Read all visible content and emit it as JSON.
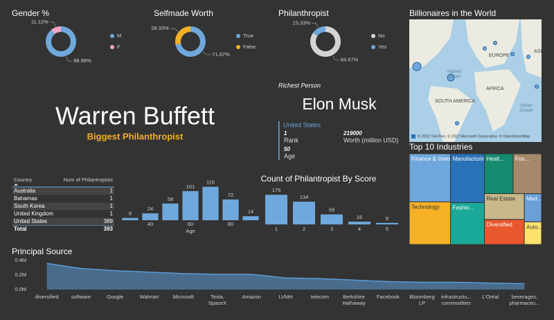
{
  "chart_data": [
    {
      "type": "donut",
      "title": "Gender %",
      "categories": [
        "M",
        "F"
      ],
      "values": [
        88.88,
        11.12
      ],
      "value_labels": [
        "88.88%",
        "11.12%"
      ],
      "colors": [
        "#6fa8dc",
        "#f4a6c8"
      ]
    },
    {
      "type": "donut",
      "title": "Selfmade Worth",
      "categories": [
        "True",
        "False"
      ],
      "values": [
        71.67,
        28.33
      ],
      "value_labels": [
        "71.67%",
        "28.33%"
      ],
      "colors": [
        "#6fa8dc",
        "#f5b026"
      ]
    },
    {
      "type": "donut",
      "title": "Philanthropist",
      "categories": [
        "No",
        "Yes"
      ],
      "values": [
        84.67,
        15.33
      ],
      "value_labels": [
        "84.67%",
        "15.33%"
      ],
      "colors": [
        "#d4d4d4",
        "#6fa8dc"
      ]
    },
    {
      "type": "bar",
      "x": [
        30,
        40,
        50,
        60,
        70,
        80,
        90
      ],
      "values": [
        8,
        24,
        58,
        101,
        116,
        72,
        14
      ],
      "xticks": [
        40,
        60,
        80
      ],
      "xlim": [
        25,
        95
      ],
      "ylim": [
        0,
        120
      ],
      "xlabel": "Age",
      "color": "#6fa8dc"
    },
    {
      "type": "bar",
      "title": "Count of Philantropist By Score",
      "categories": [
        "1",
        "2",
        "3",
        "4",
        "5"
      ],
      "values": [
        175,
        134,
        59,
        16,
        9
      ],
      "ylim": [
        0,
        180
      ],
      "color": "#6fa8dc"
    },
    {
      "type": "area",
      "title": "Principal Source",
      "categories": [
        "diversified",
        "software",
        "Google",
        "Walmart",
        "Microsoft",
        "Tesla, SpaceX",
        "Amazon",
        "LVMH",
        "telecom",
        "Berkshire Hathaway",
        "Facebook",
        "Bloomberg LP",
        "infrastructu... commodities",
        "L'Oréal",
        "beverages, pharmaceu..."
      ],
      "values": [
        360000,
        290000,
        260000,
        240000,
        220000,
        210000,
        210000,
        160000,
        150000,
        130000,
        110000,
        100000,
        100000,
        90000,
        80000
      ],
      "ylim": [
        0,
        420000
      ],
      "yticks": [
        {
          "value": 0,
          "label": "0.0M"
        },
        {
          "value": 200000,
          "label": "0.2M"
        },
        {
          "value": 400000,
          "label": "0.4M"
        }
      ],
      "color": "#5b9bd5"
    },
    {
      "type": "treemap",
      "title": "Top 10 Industries",
      "categories": [
        "Finance & Investments",
        "Technology",
        "Manufacturing",
        "Fashio...",
        "Healt...",
        "Foo...",
        "Real Estate",
        "Diversified",
        "Med...",
        "Auto..."
      ],
      "values": [
        372,
        330,
        310,
        266,
        215,
        212,
        193,
        187,
        91,
        73
      ],
      "colors": [
        "#6fa8dc",
        "#f5b026",
        "#2a72b8",
        "#1aa898",
        "#148a6e",
        "#a6896a",
        "#c8b88a",
        "#e8572e",
        "#6a9fd8",
        "#ffe26b"
      ]
    }
  ],
  "cards": {
    "philanthropist": {
      "name": "Warren Buffett",
      "label": "Biggest Philanthropist"
    },
    "richest": {
      "title": "Richest Person",
      "name": "Elon Musk",
      "country": "United States",
      "rank": 1,
      "rank_label": "Rank",
      "worth": 219000,
      "worth_label": "Worth (million USD)",
      "age": 50,
      "age_label": "Age"
    }
  },
  "table": {
    "columns": [
      "Country",
      "Num of Philantropists"
    ],
    "rows": [
      [
        "Australia",
        1
      ],
      [
        "Bahamas",
        1
      ],
      [
        "South Korea",
        1
      ],
      [
        "United Kingdom",
        1
      ],
      [
        "United States",
        389
      ]
    ],
    "total": [
      "Total",
      393
    ]
  },
  "map": {
    "title": "Billionaires in the World",
    "labels": [
      "EUROPE",
      "ASI",
      "Atlantic Ocean",
      "AFRICA",
      "SOUTH AMERICA",
      "Indian Ocean"
    ],
    "attribution": "© 2022 TomTom, © 2022 Microsoft Corporation, © OpenStreetMap"
  }
}
